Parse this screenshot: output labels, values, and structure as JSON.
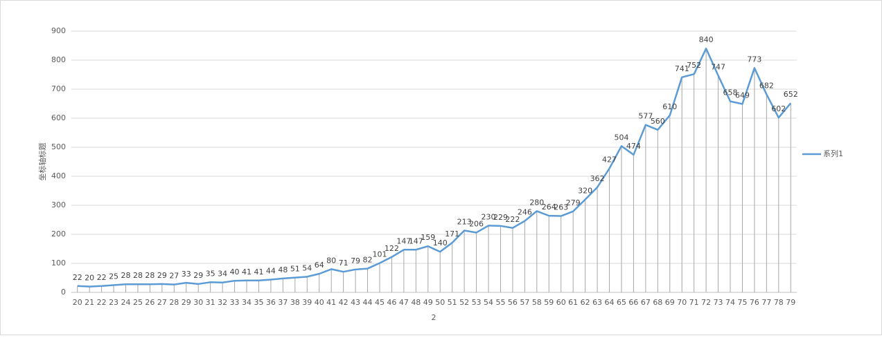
{
  "chart_data": {
    "type": "line",
    "x_label": "2",
    "y_label": "坐标轴标题",
    "categories": [
      20,
      21,
      22,
      23,
      24,
      25,
      26,
      27,
      28,
      29,
      30,
      31,
      32,
      33,
      34,
      35,
      36,
      37,
      38,
      39,
      40,
      41,
      42,
      43,
      44,
      45,
      46,
      47,
      48,
      49,
      50,
      51,
      52,
      53,
      54,
      55,
      56,
      57,
      58,
      59,
      60,
      61,
      62,
      63,
      64,
      65,
      66,
      67,
      68,
      69,
      70,
      71,
      72,
      73,
      74,
      75,
      76,
      77,
      78,
      79
    ],
    "series": [
      {
        "name": "系列1",
        "color": "#5b9bd5",
        "values": [
          22,
          20,
          22,
          25,
          28,
          28,
          28,
          29,
          27,
          33,
          29,
          35,
          34,
          40,
          41,
          41,
          44,
          48,
          51,
          54,
          64,
          80,
          71,
          79,
          82,
          101,
          122,
          147,
          147,
          159,
          140,
          171,
          213,
          206,
          230,
          229,
          222,
          246,
          280,
          264,
          263,
          279,
          320,
          362,
          427,
          504,
          474,
          577,
          560,
          610,
          741,
          752,
          840,
          747,
          658,
          649,
          773,
          682,
          602,
          652
        ]
      }
    ],
    "ylim": [
      0,
      900
    ],
    "yticks": [
      0,
      100,
      200,
      300,
      400,
      500,
      600,
      700,
      800,
      900
    ],
    "grid": true,
    "drop_lines": true,
    "legend": "right"
  }
}
